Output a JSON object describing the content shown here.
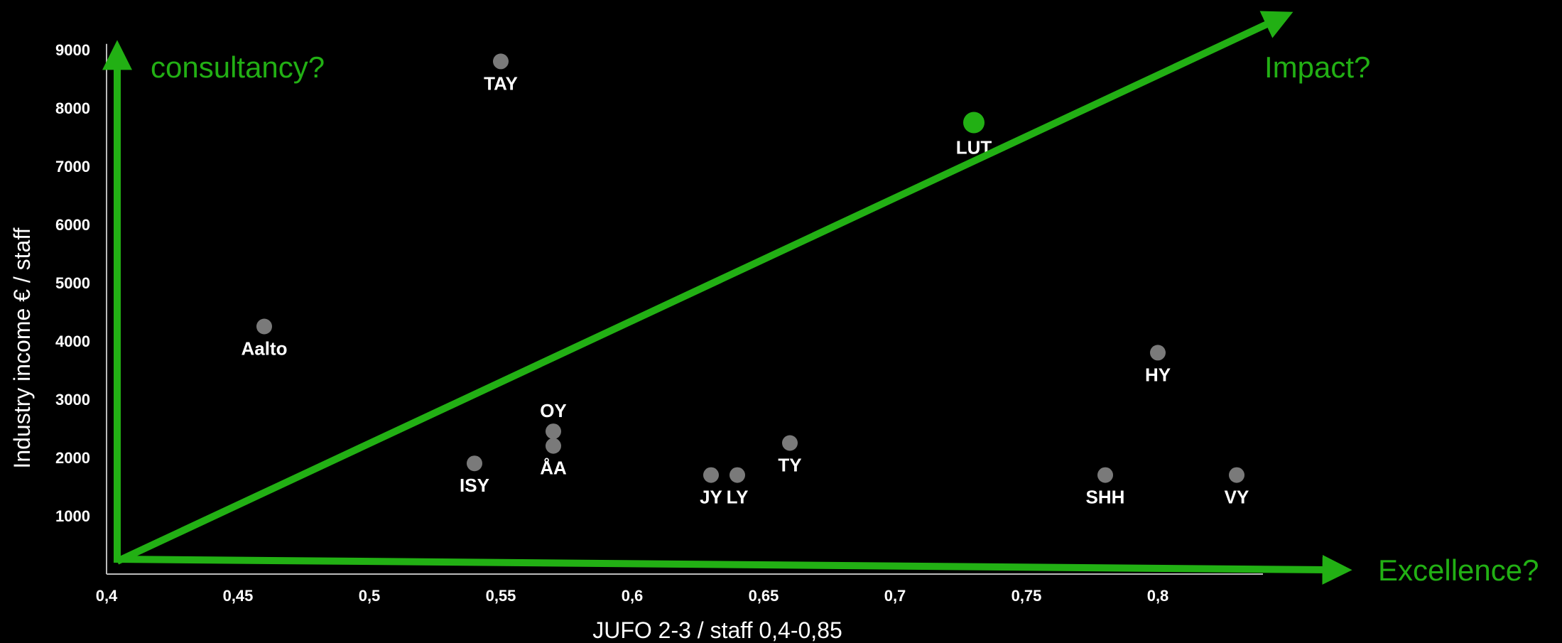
{
  "chart_data": {
    "type": "scatter",
    "xlabel": "JUFO 2-3 / staff 0,4-0,85",
    "ylabel": "Industry income € / staff",
    "xlim": [
      0.4,
      0.85
    ],
    "ylim": [
      0,
      9000
    ],
    "x_ticks": [
      "0,4",
      "0,45",
      "0,5",
      "0,55",
      "0,6",
      "0,65",
      "0,7",
      "0,75",
      "0,8"
    ],
    "y_ticks": [
      "1000",
      "2000",
      "3000",
      "4000",
      "5000",
      "6000",
      "7000",
      "8000",
      "9000"
    ],
    "grid": false,
    "point_color": "#7a7a7a",
    "highlight_color": "#22b014",
    "points": [
      {
        "label": "TAY",
        "x": 0.55,
        "y": 8800
      },
      {
        "label": "LUT",
        "x": 0.73,
        "y": 7750,
        "highlight": true
      },
      {
        "label": "Aalto",
        "x": 0.46,
        "y": 4250
      },
      {
        "label": "HY",
        "x": 0.8,
        "y": 3800
      },
      {
        "label": "OY",
        "x": 0.57,
        "y": 2450
      },
      {
        "label": "ÅA",
        "x": 0.57,
        "y": 2200
      },
      {
        "label": "TY",
        "x": 0.66,
        "y": 2250
      },
      {
        "label": "ISY",
        "x": 0.54,
        "y": 1900
      },
      {
        "label": "JY",
        "x": 0.63,
        "y": 1700
      },
      {
        "label": "LY",
        "x": 0.64,
        "y": 1700
      },
      {
        "label": "SHH",
        "x": 0.78,
        "y": 1700
      },
      {
        "label": "VY",
        "x": 0.83,
        "y": 1700
      }
    ],
    "annotations": {
      "vertical": "consultancy?",
      "diagonal": "Impact?",
      "horizontal": "Excellence?"
    },
    "arrow_color": "#22b014"
  }
}
